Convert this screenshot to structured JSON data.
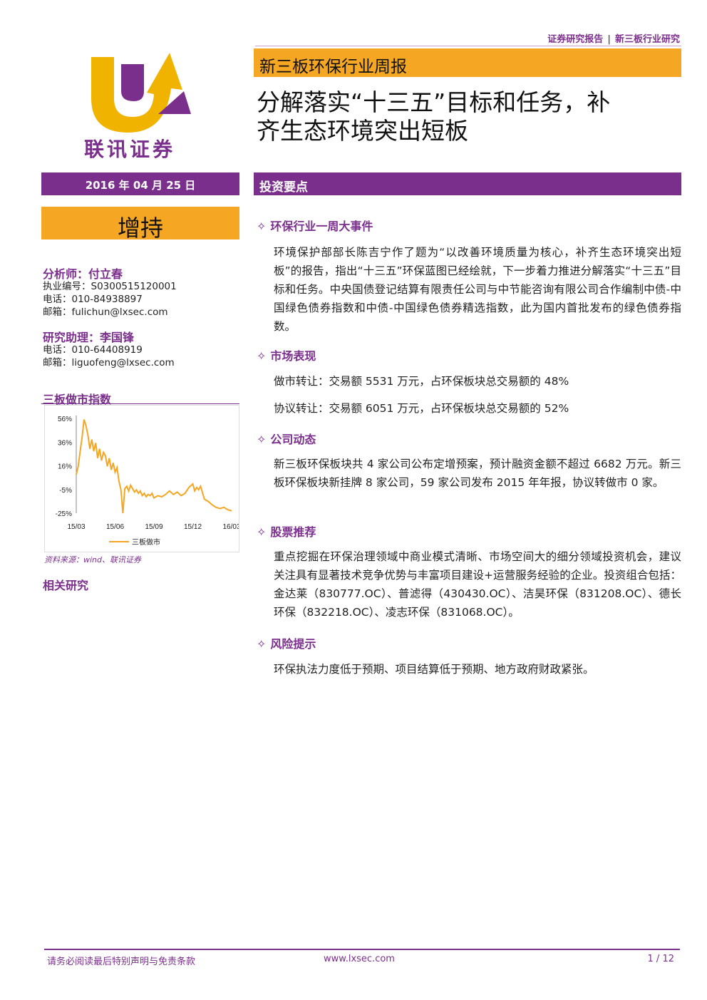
{
  "header": {
    "category": "证券研究报告",
    "separator": "|",
    "subcategory": "新三板行业研究"
  },
  "logo": {
    "name": "联讯证券"
  },
  "report_type": "新三板环保行业周报",
  "title_line1": "分解落实“十三五”目标和任务，补",
  "title_line2": "齐生态环境突出短板",
  "date": "2016 年 04 月 25 日",
  "rating": "增持",
  "analyst": {
    "label": "分析师：付立春",
    "license": "执业编号：S0300515120001",
    "phone": "电话：010-84938897",
    "email": "邮箱：fulichun@lxsec.com"
  },
  "assistant": {
    "label": "研究助理：李国锋",
    "phone": "电话：010-64408919",
    "email": "邮箱：liguofeng@lxsec.com"
  },
  "chart_title": "三板做市指数",
  "chart_data": {
    "type": "line",
    "x_ticks": [
      "15/03",
      "15/06",
      "15/09",
      "15/12",
      "16/03"
    ],
    "y_ticks": [
      "56%",
      "36%",
      "16%",
      "-5%",
      "-25%"
    ],
    "ylim": [
      -25,
      56
    ],
    "series": [
      {
        "name": "三板做市",
        "color": "#f5a623",
        "x": [
          0,
          0.05,
          0.1,
          0.15,
          0.2,
          0.25,
          0.3,
          0.35,
          0.4,
          0.45,
          0.5,
          0.55,
          0.6,
          0.65,
          0.7,
          0.75,
          0.8,
          0.85,
          0.9,
          0.95,
          1.0,
          1.05,
          1.1,
          1.15,
          1.2,
          1.25,
          1.3,
          1.35,
          1.4,
          1.45,
          1.5,
          1.55,
          1.6,
          1.65,
          1.7,
          1.75,
          1.8,
          1.85,
          1.9,
          1.95,
          2.0,
          2.1,
          2.2,
          2.3,
          2.4,
          2.5,
          2.6,
          2.7,
          2.8,
          2.9,
          3.0,
          3.05,
          3.1,
          3.15,
          3.2,
          3.3,
          3.4,
          3.5,
          3.6,
          3.7,
          3.8,
          3.9,
          4.0
        ],
        "y": [
          8,
          15,
          28,
          40,
          55,
          50,
          42,
          30,
          38,
          28,
          35,
          22,
          30,
          20,
          27,
          24,
          15,
          22,
          12,
          18,
          10,
          14,
          2,
          -5,
          -25,
          -4,
          -2,
          -6,
          -1,
          -4,
          -7,
          -5,
          -8,
          -6,
          -10,
          -8,
          -11,
          -9,
          -10,
          -8,
          -12,
          -10,
          -11,
          -9,
          -6,
          -9,
          -7,
          -10,
          -8,
          -3,
          0,
          -6,
          -3,
          -5,
          -2,
          -13,
          -15,
          -18,
          -20,
          -21,
          -20,
          -22,
          -23
        ]
      }
    ],
    "legend": "三板做市",
    "legend_position": "bottom"
  },
  "chart_source": "资料来源：wind、联讯证券",
  "related_research": "相关研究",
  "section_title": "投资要点",
  "bullets": [
    {
      "heading": "环保行业一周大事件",
      "paragraphs": [
        "环境保护部部长陈吉宁作了题为“以改善环境质量为核心，补齐生态环境突出短板”的报告，指出“十三五”环保蓝图已经绘就，下一步着力推进分解落实“十三五”目标和任务。中央国债登记结算有限责任公司与中节能咨询有限公司合作编制中债-中国绿色债券指数和中债-中国绿色债券精选指数，此为国内首批发布的绿色债券指数。"
      ]
    },
    {
      "heading": "市场表现",
      "paragraphs": [
        "做市转让：交易额 5531 万元，占环保板块总交易额的 48%",
        "协议转让：交易额 6051 万元，占环保板块总交易额的 52%"
      ]
    },
    {
      "heading": "公司动态",
      "paragraphs": [
        "新三板环保板块共 4 家公司公布定增预案，预计融资金额不超过 6682 万元。新三板环保板块新挂牌 8 家公司，59 家公司发布 2015 年年报，协议转做市 0 家。"
      ]
    },
    {
      "heading": "股票推荐",
      "paragraphs": [
        "重点挖掘在环保治理领域中商业模式清晰、市场空间大的细分领域投资机会，建议关注具有显著技术竞争优势与丰富项目建设+运营服务经验的企业。投资组合包括：金达莱（830777.OC）、普滤得（430430.OC）、洁昊环保（831208.OC）、德长环保（832218.OC）、凌志环保（831068.OC）。"
      ]
    },
    {
      "heading": "风险提示",
      "paragraphs": [
        "环保执法力度低于预期、项目结算低于预期、地方政府财政紧张。"
      ]
    }
  ],
  "bullet_symbol": "✧",
  "footer": {
    "disclaimer": "请务必阅读最后特别声明与免责条款",
    "website": "www.lxsec.com",
    "page": "1 / 12"
  }
}
